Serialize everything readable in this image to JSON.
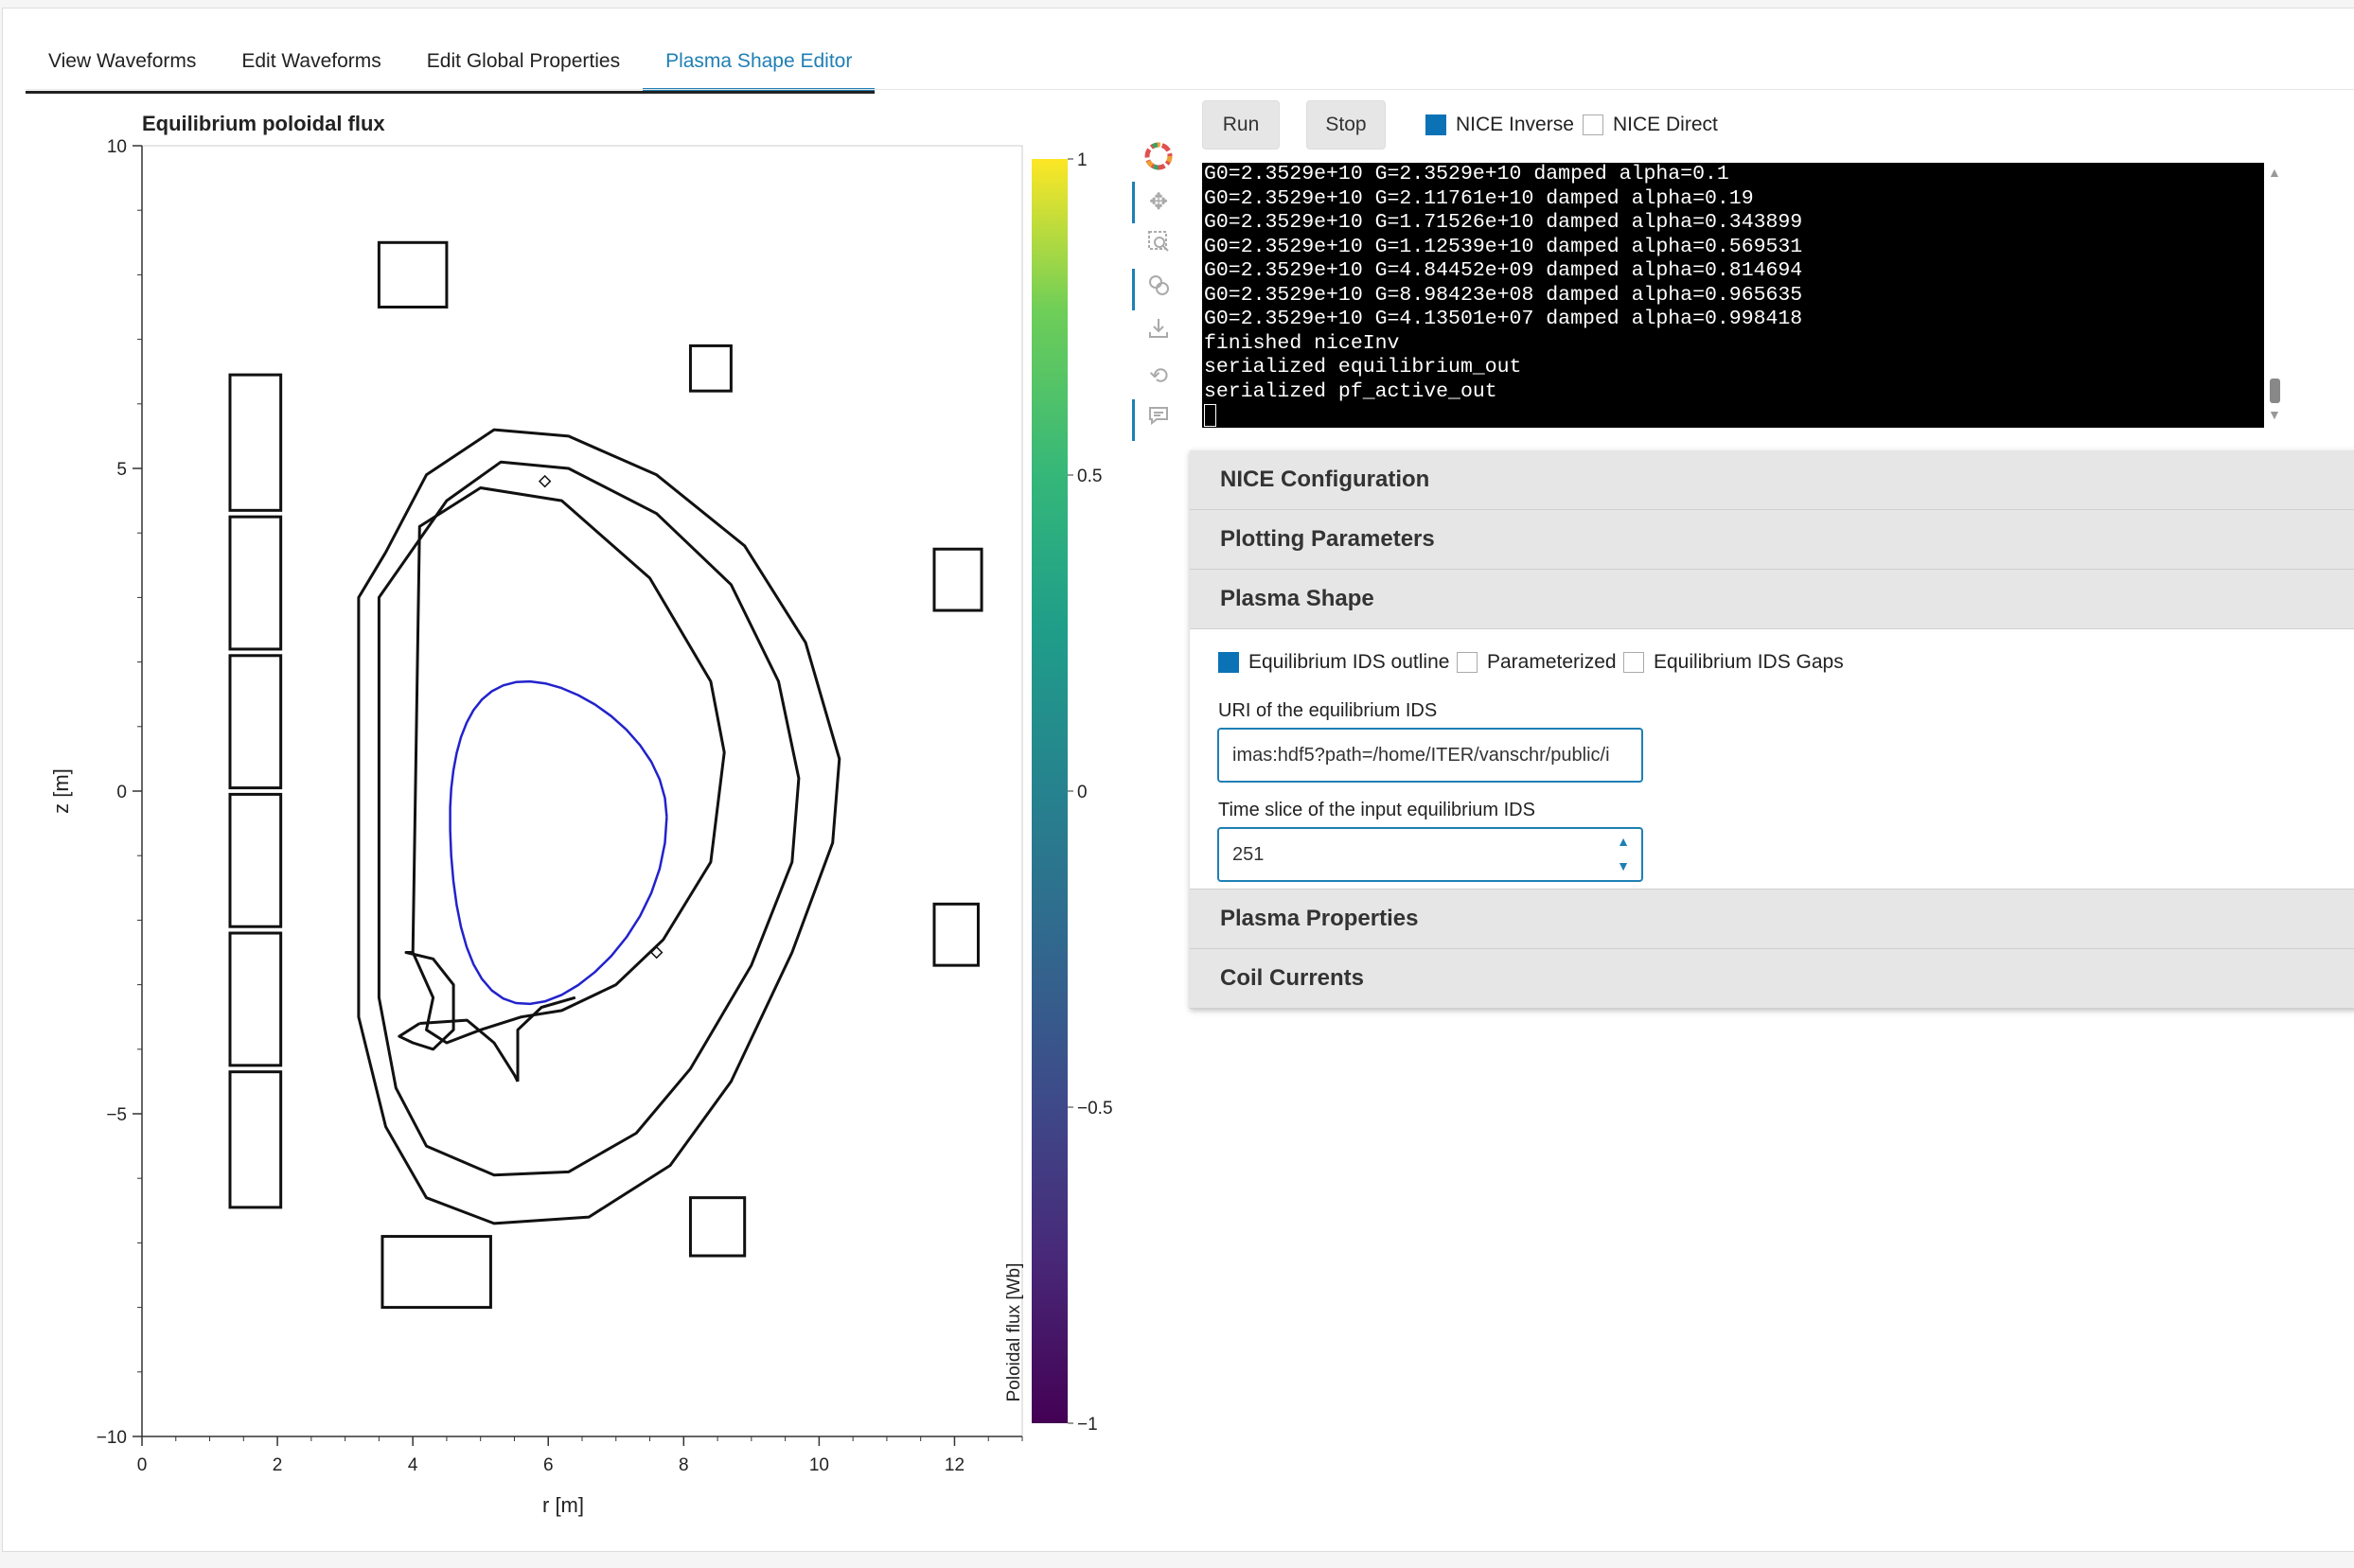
{
  "tabs": [
    {
      "label": "View Waveforms"
    },
    {
      "label": "Edit Waveforms"
    },
    {
      "label": "Edit Global Properties"
    },
    {
      "label": "Plasma Shape Editor",
      "active": true
    }
  ],
  "plot": {
    "title": "Equilibrium poloidal flux",
    "xlabel": "r [m]",
    "ylabel": "z [m]",
    "xlim": [
      0,
      13
    ],
    "ylim": [
      -10,
      10
    ],
    "xticks": [
      "0",
      "2",
      "4",
      "6",
      "8",
      "10",
      "12"
    ],
    "yticks": [
      "−10",
      "−5",
      "0",
      "5",
      "10"
    ],
    "colorbar": {
      "label": "Poloidal flux [Wb]",
      "range": [
        -1,
        1
      ],
      "ticks": [
        "1",
        "0.5",
        "0",
        "−0.5",
        "−1"
      ],
      "colormap": "viridis"
    },
    "plasma_boundary_color": "#2222cc",
    "structure_color": "#111111"
  },
  "toolbar": {
    "icons": [
      "logo-icon",
      "pan-icon",
      "box-zoom-icon",
      "wheel-zoom-icon",
      "save-icon",
      "reset-icon",
      "hover-icon"
    ]
  },
  "controls": {
    "run_label": "Run",
    "stop_label": "Stop",
    "nice_inverse_label": "NICE Inverse",
    "nice_inverse_checked": true,
    "nice_direct_label": "NICE Direct",
    "nice_direct_checked": false
  },
  "terminal": {
    "lines": [
      "G0=2.3529e+10 G=2.3529e+10 damped alpha=0.1",
      "G0=2.3529e+10 G=2.11761e+10 damped alpha=0.19",
      "G0=2.3529e+10 G=1.71526e+10 damped alpha=0.343899",
      "G0=2.3529e+10 G=1.12539e+10 damped alpha=0.569531",
      "G0=2.3529e+10 G=4.84452e+09 damped alpha=0.814694",
      "G0=2.3529e+10 G=8.98423e+08 damped alpha=0.965635",
      "G0=2.3529e+10 G=4.13501e+07 damped alpha=0.998418",
      "finished niceInv",
      "serialized equilibrium_out",
      "serialized pf_active_out"
    ]
  },
  "accordion": {
    "nice_config": "NICE Configuration",
    "plotting_params": "Plotting Parameters",
    "plasma_shape": "Plasma Shape",
    "plasma_properties": "Plasma Properties",
    "coil_currents": "Coil Currents"
  },
  "plasma_shape": {
    "outline_label": "Equilibrium IDS outline",
    "outline_checked": true,
    "parameterized_label": "Parameterized",
    "parameterized_checked": false,
    "gaps_label": "Equilibrium IDS Gaps",
    "gaps_checked": false,
    "uri_label": "URI of the equilibrium IDS",
    "uri_value": "imas:hdf5?path=/home/ITER/vanschr/public/i",
    "time_label": "Time slice of the input equilibrium IDS",
    "time_value": "251"
  },
  "colors": {
    "accent": "#1f7fb4",
    "checkbox_on": "#0b72b5"
  }
}
